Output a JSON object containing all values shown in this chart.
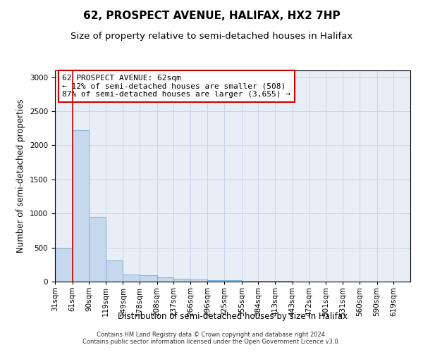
{
  "title": "62, PROSPECT AVENUE, HALIFAX, HX2 7HP",
  "subtitle": "Size of property relative to semi-detached houses in Halifax",
  "xlabel": "Distribution of semi-detached houses by size in Halifax",
  "ylabel": "Number of semi-detached properties",
  "footer_line1": "Contains HM Land Registry data © Crown copyright and database right 2024.",
  "footer_line2": "Contains public sector information licensed under the Open Government Licence v3.0.",
  "annotation_title": "62 PROSPECT AVENUE: 62sqm",
  "annotation_line2": "← 12% of semi-detached houses are smaller (508)",
  "annotation_line3": "87% of semi-detached houses are larger (3,655) →",
  "property_size": 62,
  "bar_labels": [
    "31sqm",
    "61sqm",
    "90sqm",
    "119sqm",
    "149sqm",
    "178sqm",
    "208sqm",
    "237sqm",
    "266sqm",
    "296sqm",
    "325sqm",
    "355sqm",
    "384sqm",
    "413sqm",
    "443sqm",
    "472sqm",
    "501sqm",
    "531sqm",
    "560sqm",
    "590sqm",
    "619sqm"
  ],
  "bar_values": [
    500,
    2220,
    950,
    310,
    105,
    90,
    60,
    45,
    30,
    25,
    20,
    15,
    10,
    8,
    5,
    4,
    3,
    3,
    2,
    2,
    1
  ],
  "bar_edges": [
    31,
    61,
    90,
    119,
    149,
    178,
    208,
    237,
    266,
    296,
    325,
    355,
    384,
    413,
    443,
    472,
    501,
    531,
    560,
    590,
    619,
    648
  ],
  "bar_color": "#c5d8ee",
  "bar_edgecolor": "#7aafd4",
  "vline_color": "#cc0000",
  "vline_x": 62,
  "annotation_box_edgecolor": "#cc0000",
  "background_color": "#ffffff",
  "grid_color": "#c8d4e8",
  "ylim": [
    0,
    3100
  ],
  "yticks": [
    0,
    500,
    1000,
    1500,
    2000,
    2500,
    3000
  ],
  "title_fontsize": 11,
  "subtitle_fontsize": 9.5,
  "label_fontsize": 8.5,
  "tick_fontsize": 7.5,
  "annotation_fontsize": 8
}
